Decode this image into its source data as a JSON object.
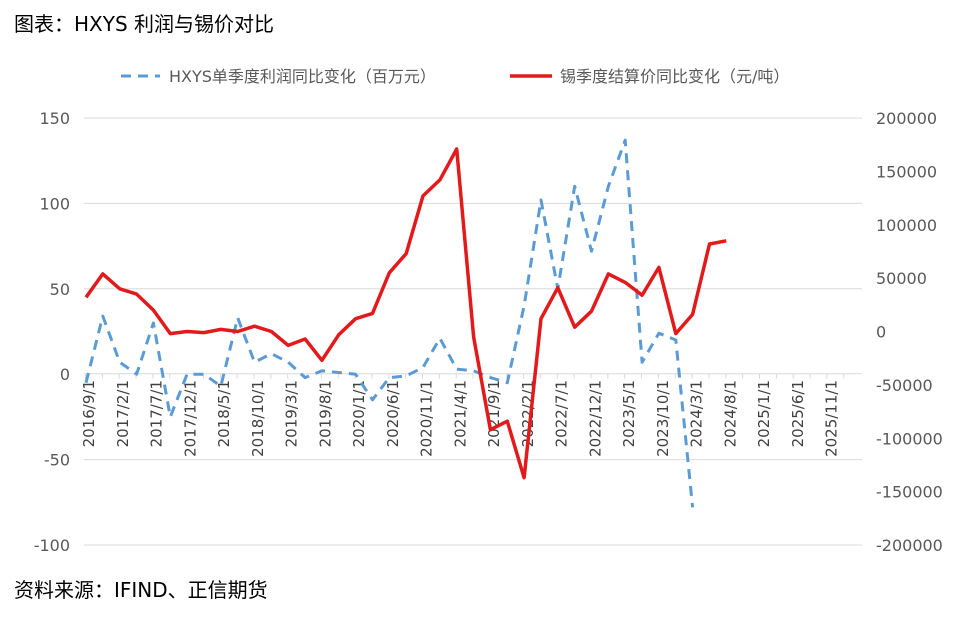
{
  "title": "图表：HXYS 利润与锡价对比",
  "source": "资料来源：IFIND、正信期货",
  "colors": {
    "profit": "#5b9bd5",
    "tin": "#e31a1c",
    "axis": "#d9d9d9",
    "tick": "#595959"
  },
  "chart_data": {
    "type": "line",
    "x": [
      "2016/9/1",
      "2016/12/1",
      "2017/2/1",
      "2017/4/1",
      "2017/7/1",
      "2017/9/1",
      "2017/11/1",
      "2018/2/1",
      "2018/5/1",
      "2018/7/1",
      "2018/10/1",
      "2018/12/1",
      "2019/3/1",
      "2019/5/1",
      "2019/8/1",
      "2019/10/1",
      "2020/1/1",
      "2020/3/1",
      "2020/6/1",
      "2020/8/1",
      "2020/11/1",
      "2021/2/1",
      "2021/4/1",
      "2021/6/1",
      "2021/9/1",
      "2021/11/1",
      "2022/2/1",
      "2022/4/1",
      "2022/7/1",
      "2022/9/1",
      "2022/12/1",
      "2023/2/1",
      "2023/5/1",
      "2023/7/1",
      "2023/10/1",
      "2023/12/1",
      "2024/3/1",
      "2024/5/1",
      "2024/8/1",
      "2024/10/1",
      "2025/1/1",
      "2025/3/1",
      "2025/6/1",
      "2025/8/1",
      "2025/11/1",
      "2026/1/1"
    ],
    "x_tick_labels": [
      "2016/9/1",
      "2017/2/1",
      "2017/7/1",
      "2017/12/1",
      "2018/5/1",
      "2018/10/1",
      "2019/3/1",
      "2019/8/1",
      "2020/1/1",
      "2020/6/1",
      "2020/11/1",
      "2021/4/1",
      "2021/9/1",
      "2022/2/1",
      "2022/7/1",
      "2022/12/1",
      "2023/5/1",
      "2023/10/1",
      "2024/3/1",
      "2024/8/1",
      "2025/1/1",
      "2025/6/1",
      "2025/11/1"
    ],
    "y_left": {
      "range": [
        -100,
        150
      ],
      "ticks": [
        -100,
        -50,
        0,
        50,
        100,
        150
      ]
    },
    "y_right": {
      "range": [
        -200000,
        200000
      ],
      "ticks": [
        -200000,
        -150000,
        -100000,
        -50000,
        0,
        50000,
        100000,
        150000,
        200000
      ]
    },
    "legend_position": "top",
    "grid": "horizontal",
    "series": [
      {
        "name": "HXYS单季度利润同比变化（百万元）",
        "axis": "left",
        "style": "dashed",
        "values": [
          -5,
          34,
          7,
          0,
          30,
          -25,
          0,
          0,
          -7,
          33,
          7,
          12,
          7,
          -2,
          2,
          1,
          0,
          -15,
          -2,
          -1,
          4,
          21,
          3,
          2,
          -2,
          -5,
          40,
          102,
          50,
          110,
          72,
          110,
          137,
          7,
          24,
          20,
          -78,
          null,
          null,
          null,
          null,
          null,
          null,
          null,
          null,
          null
        ]
      },
      {
        "name": "锡季度结算价同比变化（元/吨）",
        "axis": "right",
        "style": "solid",
        "values": [
          32000,
          54000,
          40000,
          35000,
          20000,
          -2000,
          0,
          -1000,
          2000,
          0,
          5000,
          0,
          -13000,
          -7000,
          -27000,
          -3000,
          12000,
          17000,
          55000,
          73000,
          127000,
          142000,
          171000,
          -5000,
          -92000,
          -84000,
          -137000,
          12000,
          41000,
          4000,
          19000,
          54000,
          46000,
          34000,
          60000,
          -2000,
          16000,
          82000,
          85000,
          null,
          null,
          null,
          null,
          null,
          null,
          null
        ]
      }
    ]
  }
}
